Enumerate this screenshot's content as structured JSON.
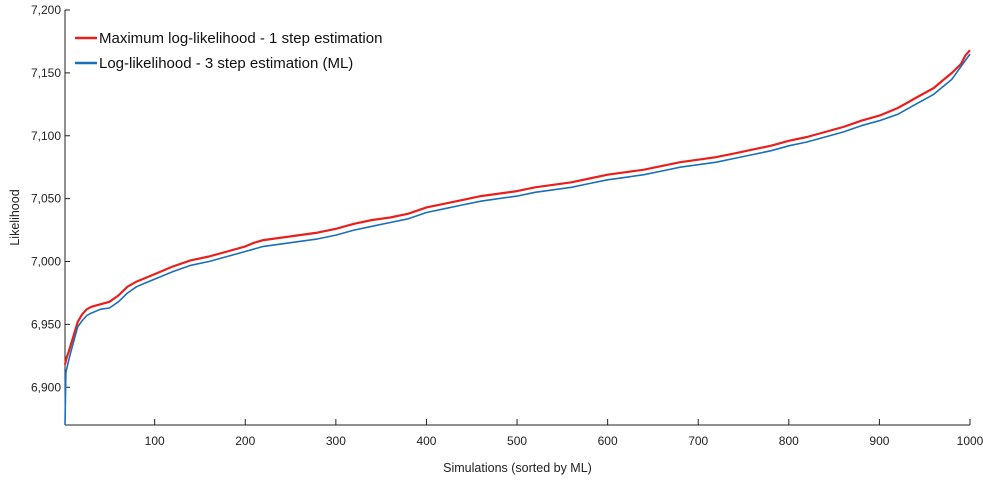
{
  "chart_data": {
    "type": "line",
    "title": "",
    "xlabel": "Simulations (sorted by ML)",
    "ylabel": "Likelihood",
    "xlim": [
      1,
      1000
    ],
    "ylim": [
      6870,
      7200
    ],
    "grid": false,
    "legend_position": "top-left",
    "x_ticks": [
      100,
      200,
      300,
      400,
      500,
      600,
      700,
      800,
      900,
      1000
    ],
    "x_tick_labels": [
      "100",
      "200",
      "300",
      "400",
      "500",
      "600",
      "700",
      "800",
      "900",
      "1000"
    ],
    "y_ticks": [
      6900,
      6950,
      7000,
      7050,
      7100,
      7150,
      7200
    ],
    "y_tick_labels": [
      "6,900",
      "6,950",
      "7,000",
      "7,050",
      "7,100",
      "7,150",
      "7,200"
    ],
    "series": [
      {
        "name": "Maximum log-likelihood - 1 step estimation",
        "color": "#e8201d",
        "x": [
          1,
          3,
          5,
          10,
          15,
          20,
          25,
          30,
          40,
          50,
          60,
          70,
          80,
          90,
          100,
          120,
          140,
          160,
          180,
          200,
          210,
          220,
          240,
          260,
          280,
          300,
          320,
          340,
          360,
          380,
          400,
          420,
          440,
          460,
          480,
          500,
          520,
          540,
          560,
          580,
          600,
          620,
          640,
          660,
          680,
          700,
          720,
          740,
          760,
          780,
          800,
          820,
          840,
          860,
          880,
          900,
          910,
          920,
          930,
          940,
          950,
          960,
          970,
          980,
          990,
          995,
          1000
        ],
        "values": [
          6918,
          6924,
          6928,
          6940,
          6952,
          6958,
          6962,
          6964,
          6966,
          6968,
          6973,
          6980,
          6984,
          6987,
          6990,
          6996,
          7001,
          7004,
          7008,
          7012,
          7015,
          7017,
          7019,
          7021,
          7023,
          7026,
          7030,
          7033,
          7035,
          7038,
          7043,
          7046,
          7049,
          7052,
          7054,
          7056,
          7059,
          7061,
          7063,
          7066,
          7069,
          7071,
          7073,
          7076,
          7079,
          7081,
          7083,
          7086,
          7089,
          7092,
          7096,
          7099,
          7103,
          7107,
          7112,
          7116,
          7119,
          7122,
          7126,
          7130,
          7134,
          7138,
          7144,
          7150,
          7157,
          7164,
          7168
        ]
      },
      {
        "name": "Log-likelihood - 3 step estimation (ML)",
        "color": "#1a6fbb",
        "x": [
          1,
          2,
          4,
          6,
          10,
          15,
          20,
          25,
          30,
          40,
          50,
          60,
          70,
          80,
          90,
          100,
          120,
          140,
          160,
          180,
          200,
          220,
          240,
          260,
          280,
          300,
          320,
          340,
          360,
          380,
          400,
          420,
          440,
          460,
          480,
          500,
          520,
          540,
          560,
          580,
          600,
          620,
          640,
          660,
          680,
          700,
          720,
          740,
          760,
          780,
          800,
          820,
          840,
          860,
          880,
          900,
          920,
          940,
          960,
          980,
          990,
          1000
        ],
        "values": [
          6870,
          6912,
          6918,
          6924,
          6935,
          6948,
          6953,
          6957,
          6959,
          6962,
          6963,
          6968,
          6975,
          6980,
          6983,
          6986,
          6992,
          6997,
          7000,
          7004,
          7008,
          7012,
          7014,
          7016,
          7018,
          7021,
          7025,
          7028,
          7031,
          7034,
          7039,
          7042,
          7045,
          7048,
          7050,
          7052,
          7055,
          7057,
          7059,
          7062,
          7065,
          7067,
          7069,
          7072,
          7075,
          7077,
          7079,
          7082,
          7085,
          7088,
          7092,
          7095,
          7099,
          7103,
          7108,
          7112,
          7117,
          7125,
          7133,
          7145,
          7155,
          7165
        ]
      }
    ]
  }
}
